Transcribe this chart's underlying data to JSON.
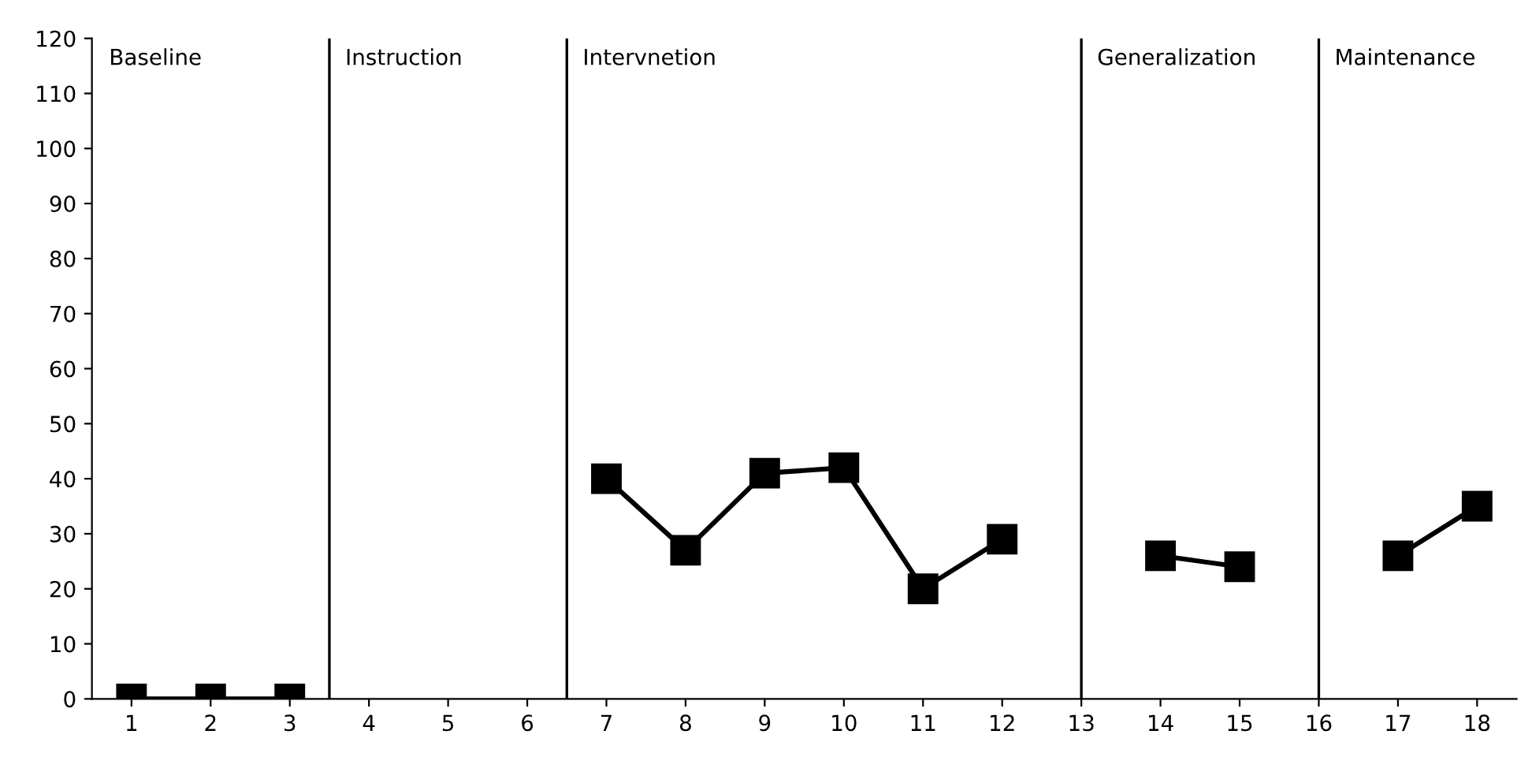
{
  "chart_data": {
    "type": "line",
    "x": [
      1,
      2,
      3,
      4,
      5,
      6,
      7,
      8,
      9,
      10,
      11,
      12,
      13,
      14,
      15,
      16,
      17,
      18
    ],
    "series": [
      {
        "color": "#000000",
        "values": [
          0,
          0,
          0,
          null,
          null,
          null,
          40,
          27,
          41,
          42,
          20,
          29,
          null,
          26,
          24,
          null,
          26,
          35
        ]
      }
    ],
    "xlim": [
      0.5,
      18.5
    ],
    "xticks": [
      1,
      2,
      3,
      4,
      5,
      6,
      7,
      8,
      9,
      10,
      11,
      12,
      13,
      14,
      15,
      16,
      17,
      18
    ],
    "ylim": [
      0,
      120
    ],
    "yticks": [
      0,
      10,
      20,
      30,
      40,
      50,
      60,
      70,
      80,
      90,
      100,
      110,
      120
    ],
    "marker": "square",
    "line_style": "solid",
    "grid": false,
    "legend": false,
    "annotations": [
      "Baseline"
    ],
    "ref_lines": [
      {
        "axis": "x",
        "value": 3.5,
        "color": "#000000",
        "label": "Instruction"
      },
      {
        "axis": "x",
        "value": 6.5,
        "color": "#000000",
        "label": "Intervnetion"
      },
      {
        "axis": "x",
        "value": 13,
        "color": "#000000",
        "label": "Generalization"
      },
      {
        "axis": "x",
        "value": 16,
        "color": "#000000",
        "label": "Maintenance"
      }
    ]
  }
}
